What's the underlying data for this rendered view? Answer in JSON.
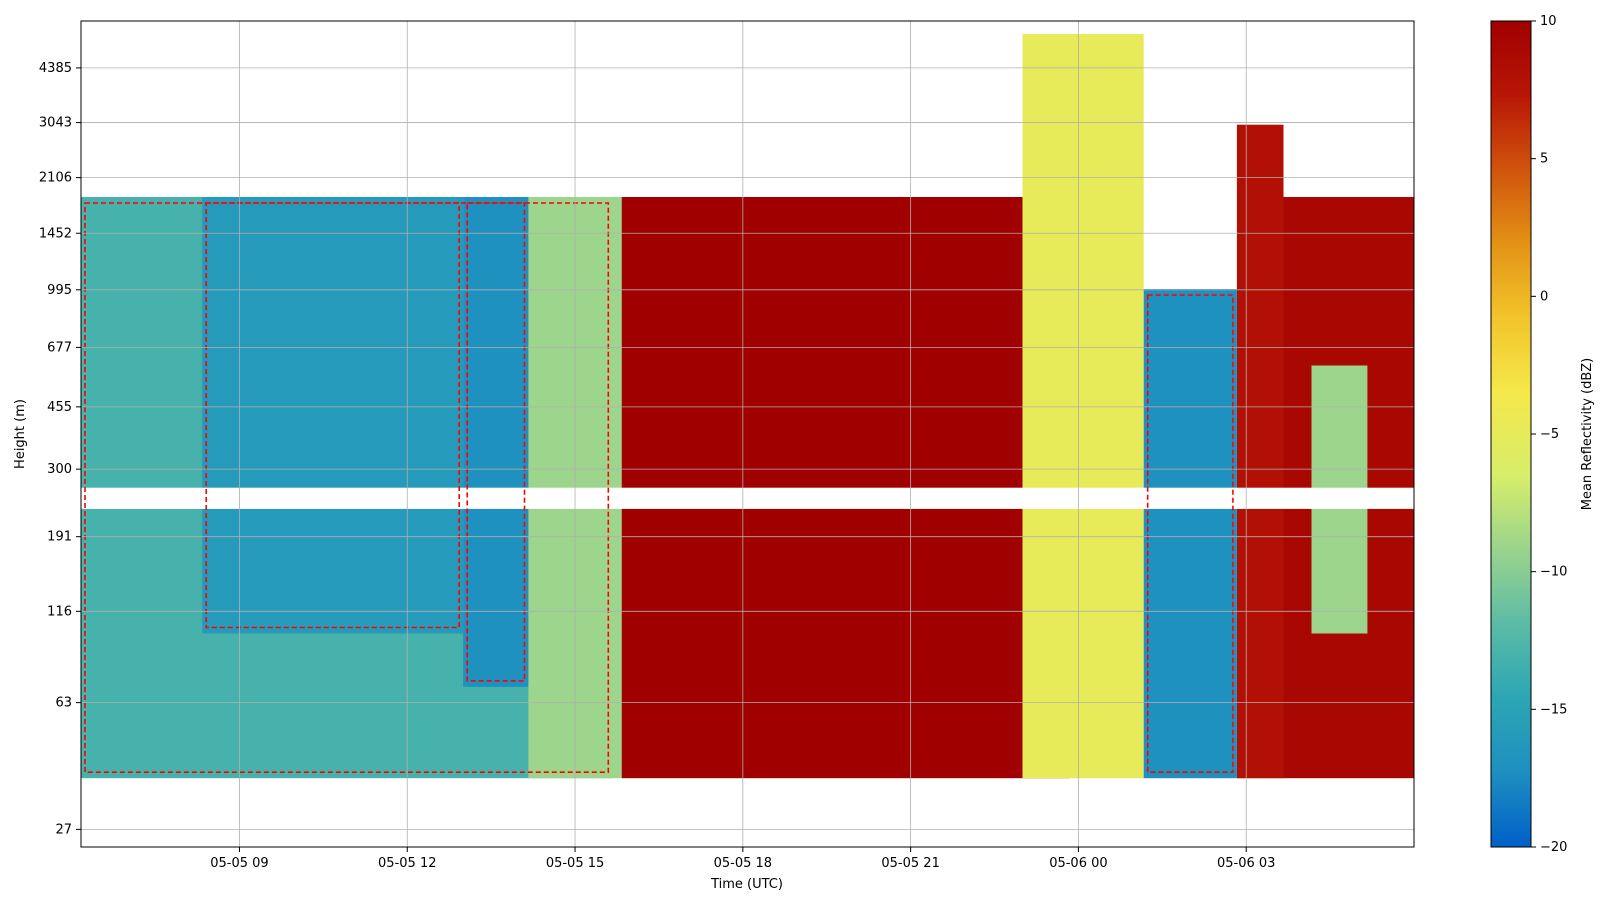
{
  "chart_data": {
    "type": "heatmap",
    "title": "",
    "xlabel": "Time (UTC)",
    "ylabel": "Height (m)",
    "x_ticks": [
      "05-05 09",
      "05-05 12",
      "05-05 15",
      "05-05 18",
      "05-05 21",
      "05-06 00",
      "05-06 03"
    ],
    "x_range": [
      "05-05 06:10",
      "05-06 06:00"
    ],
    "y_scale": "log",
    "y_ticks": [
      27,
      63,
      116,
      191,
      300,
      455,
      677,
      995,
      1452,
      2106,
      3043,
      4385
    ],
    "y_range": [
      24,
      6000
    ],
    "grid": true,
    "colorbar": {
      "label": "Mean Reflectivity (dBZ)",
      "range": [
        -20,
        10
      ],
      "ticks": [
        10,
        5,
        0,
        -5,
        -10,
        -15,
        -20
      ],
      "colors": [
        "#0060c8",
        "#1e8fc0",
        "#2ca6b4",
        "#5cbba6",
        "#9ad48c",
        "#d8ee6a",
        "#f5e84a",
        "#f2c52a",
        "#e39216",
        "#d0540c",
        "#b81606",
        "#a00000"
      ]
    },
    "contour_color": "#ff0000",
    "contour_style": "dashed",
    "regions": [
      {
        "t0": "05-05 06:10",
        "t1": "05-05 15:40",
        "h0": 38,
        "h1": 1850,
        "dbz": -13
      },
      {
        "t0": "05-05 08:20",
        "t1": "05-05 13:00",
        "h0": 100,
        "h1": 1850,
        "dbz": -16
      },
      {
        "t0": "05-05 13:00",
        "t1": "05-05 14:10",
        "h0": 70,
        "h1": 1850,
        "dbz": -17
      },
      {
        "t0": "05-05 14:10",
        "t1": "05-05 15:50",
        "h0": 38,
        "h1": 1850,
        "dbz": -9
      },
      {
        "t0": "05-05 15:50",
        "t1": "05-05 23:50",
        "h0": 38,
        "h1": 1850,
        "dbz": 10
      },
      {
        "t0": "05-05 23:00",
        "t1": "05-06 01:10",
        "h0": 38,
        "h1": 5500,
        "dbz": -5
      },
      {
        "t0": "05-06 01:10",
        "t1": "05-06 02:50",
        "h0": 38,
        "h1": 1000,
        "dbz": -17
      },
      {
        "t0": "05-06 02:50",
        "t1": "05-06 03:40",
        "h0": 38,
        "h1": 3000,
        "dbz": 8
      },
      {
        "t0": "05-06 03:40",
        "t1": "05-06 06:00",
        "h0": 38,
        "h1": 1850,
        "dbz": 9
      },
      {
        "t0": "05-06 04:10",
        "t1": "05-06 05:10",
        "h0": 100,
        "h1": 600,
        "dbz": -9
      }
    ],
    "gap": {
      "h0": 230,
      "h1": 265
    }
  }
}
